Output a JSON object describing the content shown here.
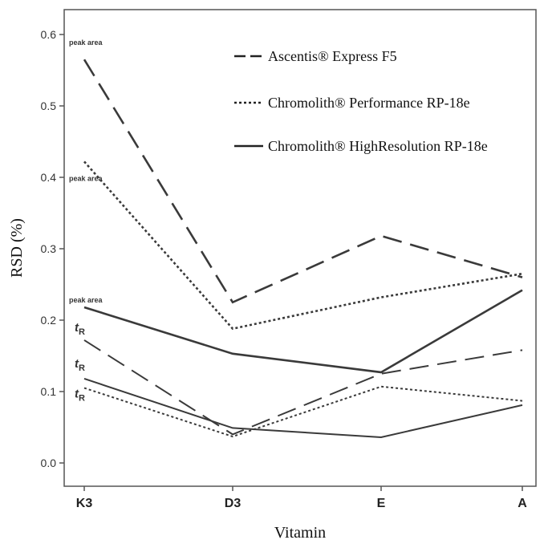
{
  "chart_data": {
    "type": "line",
    "title": "",
    "xlabel": "Vitamin",
    "ylabel": "RSD (%)",
    "categories": [
      "K3",
      "D3",
      "E",
      "A"
    ],
    "ylim": [
      0.0,
      0.6
    ],
    "yticks": [
      "0.0",
      "0.1",
      "0.2",
      "0.3",
      "0.4",
      "0.5",
      "0.6"
    ],
    "grid": false,
    "legend_position": "top-right",
    "legend": [
      {
        "label": "Ascentis® Express F5",
        "dash": "dashed"
      },
      {
        "label": "Chromolith® Performance RP-18e",
        "dash": "dotted"
      },
      {
        "label": "Chromolith® HighResolution RP-18e",
        "dash": "solid"
      }
    ],
    "series": [
      {
        "column": "Ascentis® Express F5",
        "measure": "peak area",
        "dash": "dashed",
        "thick": true,
        "values": [
          0.565,
          0.225,
          0.318,
          0.26
        ]
      },
      {
        "column": "Chromolith® Performance RP-18e",
        "measure": "peak area",
        "dash": "dotted",
        "thick": true,
        "values": [
          0.422,
          0.188,
          0.232,
          0.265
        ]
      },
      {
        "column": "Chromolith® HighResolution RP-18e",
        "measure": "peak area",
        "dash": "solid",
        "thick": true,
        "values": [
          0.218,
          0.153,
          0.127,
          0.242
        ]
      },
      {
        "column": "Ascentis® Express F5",
        "measure": "tR",
        "dash": "dashed",
        "thick": false,
        "values": [
          0.172,
          0.04,
          0.125,
          0.158
        ]
      },
      {
        "column": "Chromolith® Performance RP-18e",
        "measure": "tR",
        "dash": "dotted",
        "thick": false,
        "values": [
          0.105,
          0.037,
          0.107,
          0.087
        ]
      },
      {
        "column": "Chromolith® HighResolution RP-18e",
        "measure": "tR",
        "dash": "solid",
        "thick": false,
        "values": [
          0.118,
          0.049,
          0.036,
          0.081
        ]
      }
    ],
    "annotations": [
      {
        "text": "peak area",
        "series": 0
      },
      {
        "text": "peak area",
        "series": 1
      },
      {
        "text": "peak area",
        "series": 2
      },
      {
        "text": "t",
        "sub": "R",
        "series": 3
      },
      {
        "text": "t",
        "sub": "R",
        "series": 5
      },
      {
        "text": "t",
        "sub": "R",
        "series": 4
      }
    ]
  }
}
